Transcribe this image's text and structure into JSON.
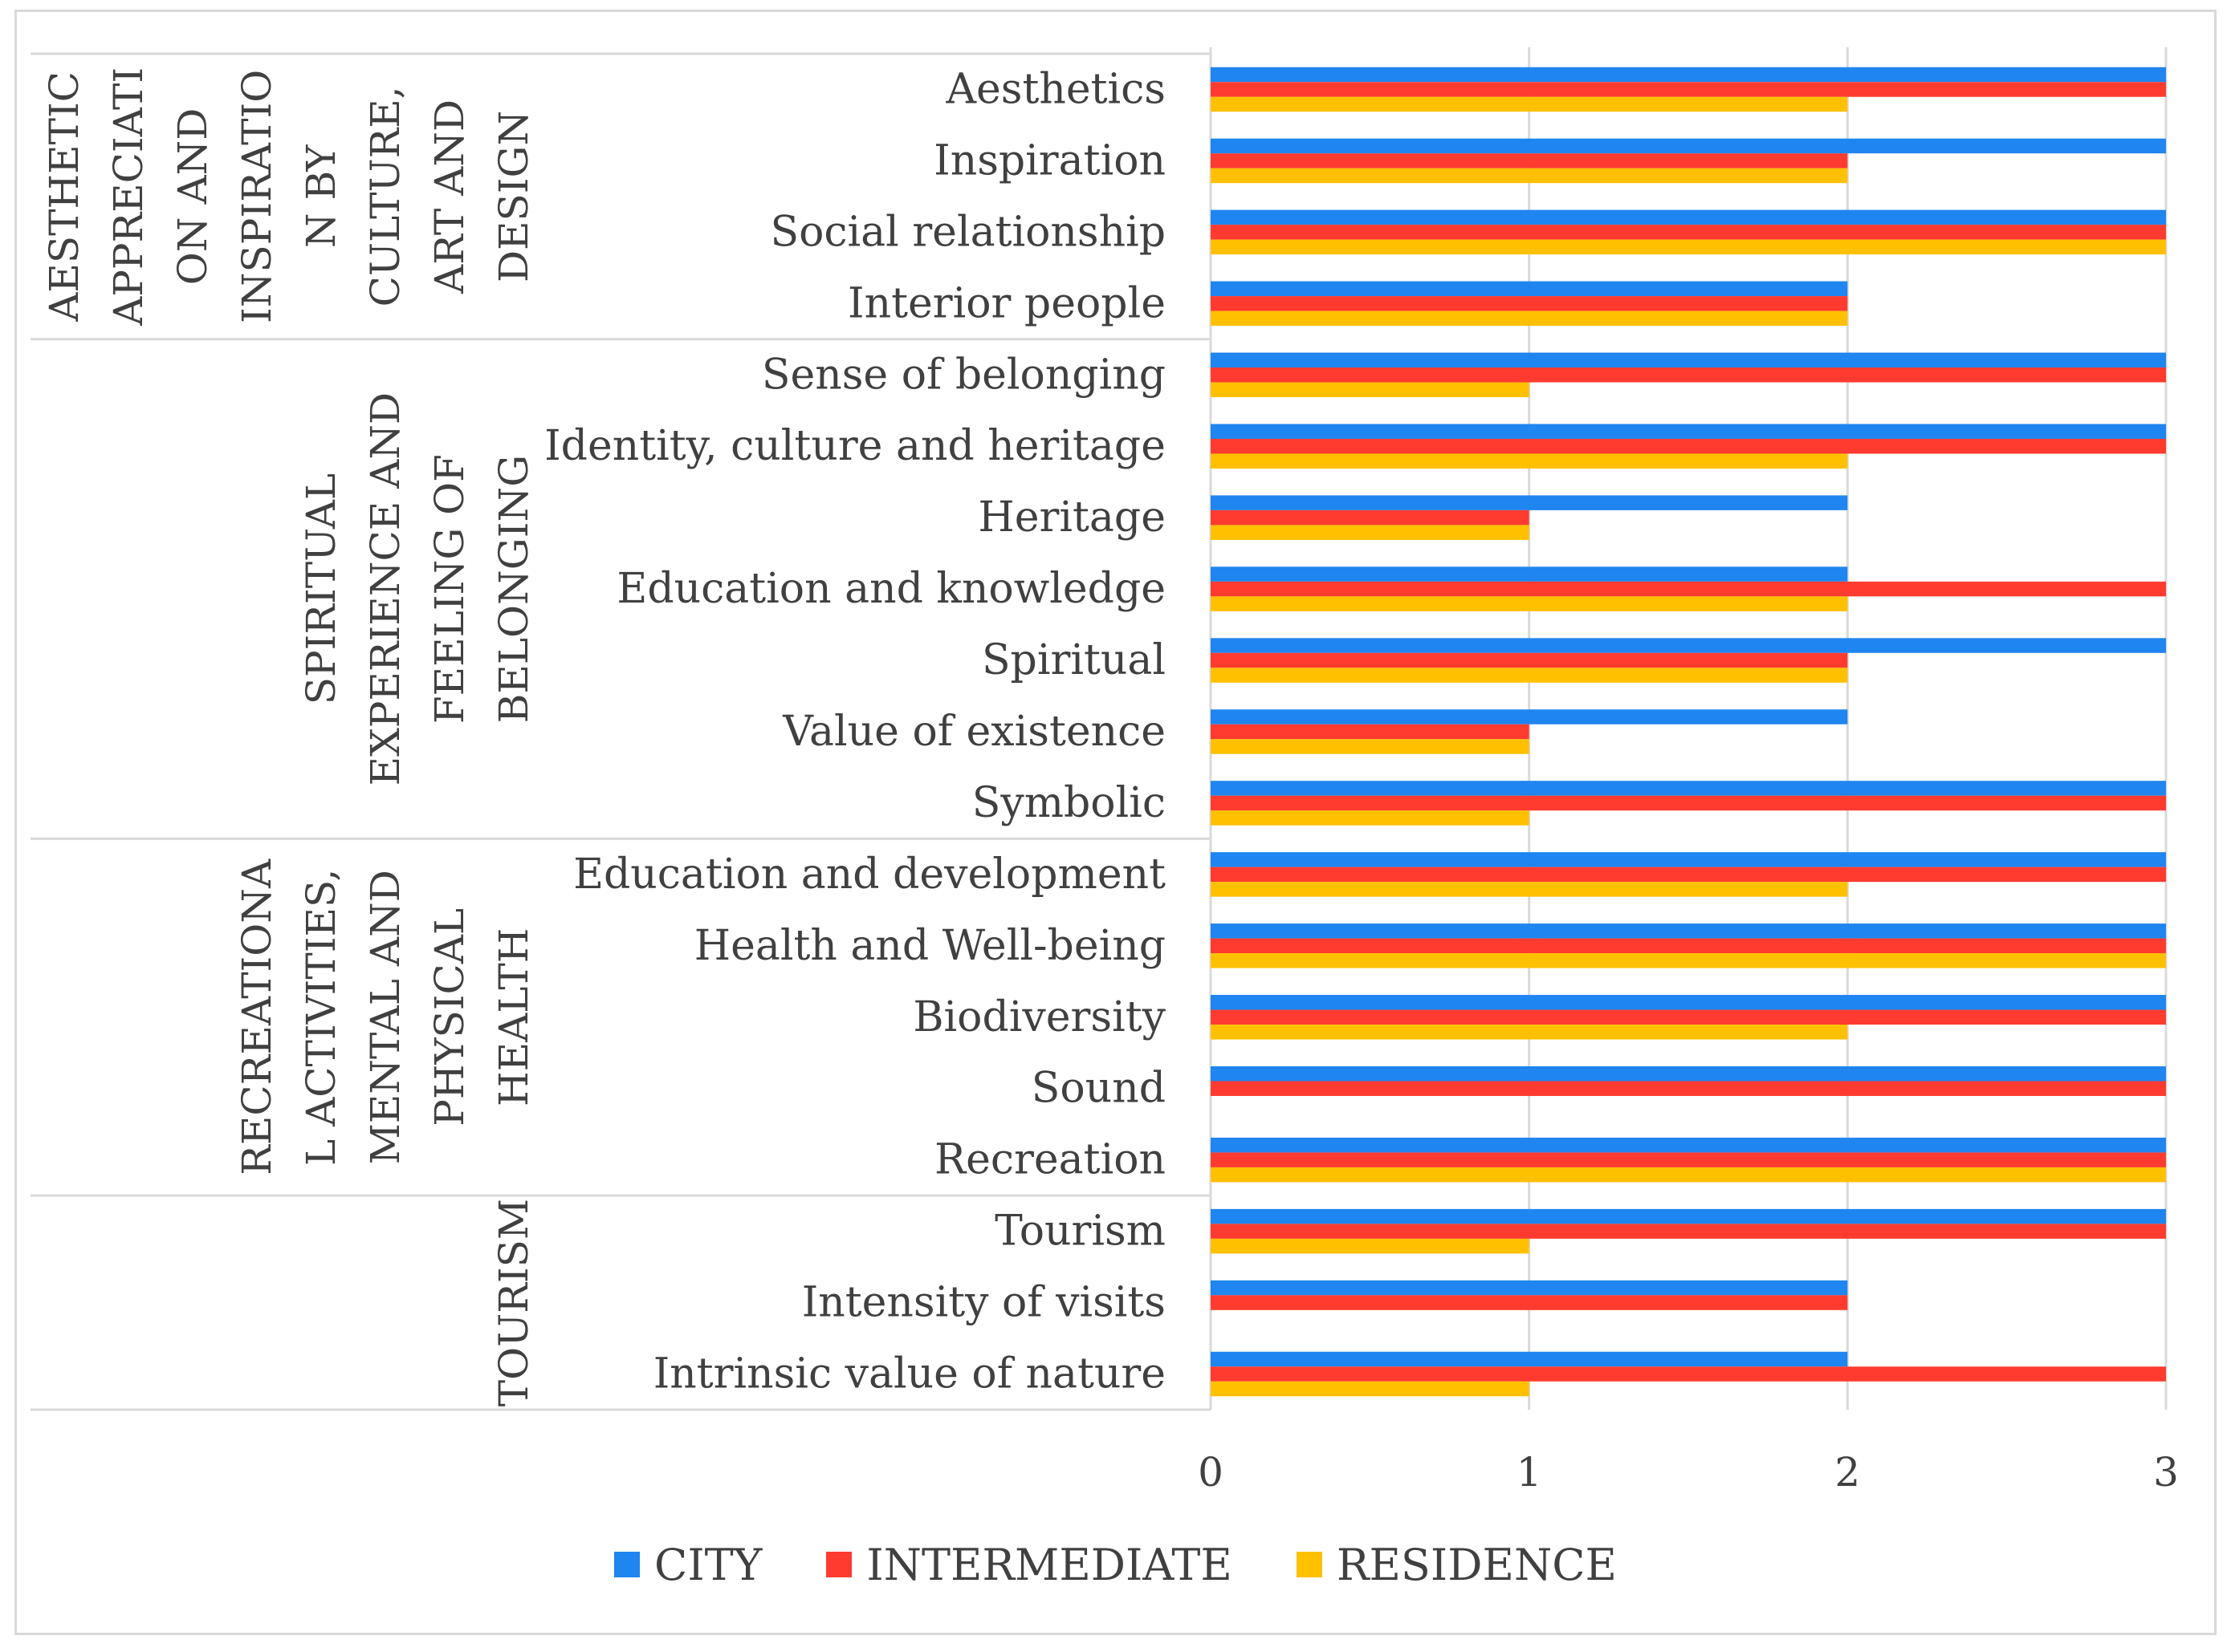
{
  "colors": {
    "city": "#1f85f0",
    "intermediate": "#ff3b30",
    "residence": "#ffc000",
    "grid": "#d9d9d9",
    "text": "#404040"
  },
  "chart_data": {
    "type": "bar",
    "orientation": "horizontal",
    "title": "",
    "xlabel": "",
    "ylabel": "",
    "xlim": [
      0,
      3
    ],
    "x_ticks": [
      "0",
      "1",
      "2",
      "3"
    ],
    "grid": true,
    "legend_position": "bottom",
    "categories": [
      "Aesthetics",
      "Inspiration",
      "Social relationship",
      "Interior people",
      "Sense of belonging",
      "Identity, culture and heritage",
      "Heritage",
      "Education and knowledge",
      "Spiritual",
      "Value of existence",
      "Symbolic",
      "Education and development",
      "Health and Well-being",
      "Biodiversity",
      "Sound",
      "Recreation",
      "Tourism",
      "Intensity of visits",
      "Intrinsic value of nature"
    ],
    "groups": [
      {
        "lines": [
          "AESTHETIC",
          "APPRECIATI",
          "ON AND",
          "INSPIRATIO",
          "N BY",
          "CULTURE,",
          "ART AND",
          "DESIGN"
        ],
        "start": 0,
        "end": 3
      },
      {
        "lines": [
          "SPIRITUAL",
          "EXPERIENCE AND",
          "FEELING OF",
          "BELONGING"
        ],
        "start": 4,
        "end": 10
      },
      {
        "lines": [
          "RECREATIONA",
          "L ACTIVITIES,",
          "MENTAL AND",
          "PHYSICAL",
          "HEALTH"
        ],
        "start": 11,
        "end": 15
      },
      {
        "lines": [
          "TOURISM"
        ],
        "start": 16,
        "end": 18
      }
    ],
    "series": [
      {
        "name": "CITY",
        "values": [
          3,
          3,
          3,
          2,
          3,
          3,
          2,
          2,
          3,
          2,
          3,
          3,
          3,
          3,
          3,
          3,
          3,
          2,
          2
        ]
      },
      {
        "name": "INTERMEDIATE",
        "values": [
          3,
          2,
          3,
          2,
          3,
          3,
          1,
          3,
          2,
          1,
          3,
          3,
          3,
          3,
          3,
          3,
          3,
          2,
          3
        ]
      },
      {
        "name": "RESIDENCE",
        "values": [
          2,
          2,
          3,
          2,
          1,
          2,
          1,
          2,
          2,
          1,
          1,
          2,
          3,
          2,
          0,
          3,
          1,
          0,
          1
        ]
      }
    ]
  }
}
